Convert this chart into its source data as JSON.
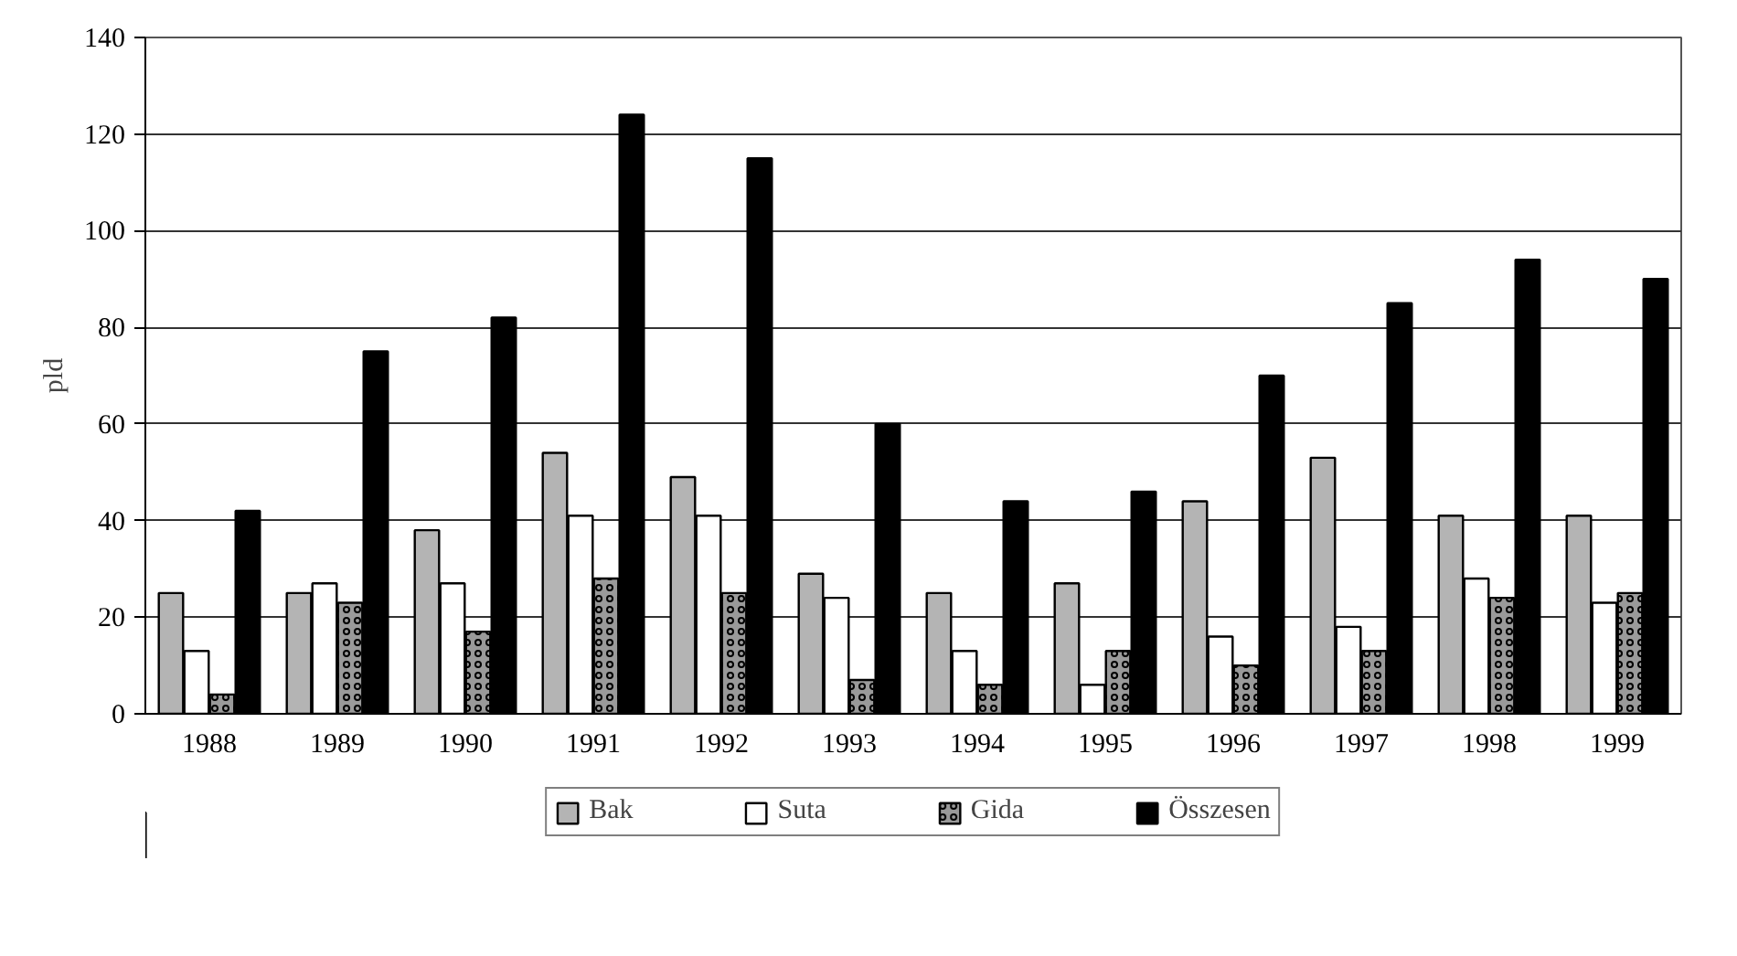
{
  "chart_data": {
    "type": "bar",
    "ylabel": "pld",
    "categories": [
      "1988",
      "1989",
      "1990",
      "1991",
      "1992",
      "1993",
      "1994",
      "1995",
      "1996",
      "1997",
      "1998",
      "1999"
    ],
    "series": [
      {
        "name": "Bak",
        "color": "#b4b4b4",
        "values": [
          25,
          25,
          38,
          54,
          49,
          29,
          25,
          27,
          44,
          53,
          41,
          41
        ]
      },
      {
        "name": "Suta",
        "color": "#ffffff",
        "values": [
          13,
          27,
          27,
          41,
          41,
          24,
          13,
          6,
          16,
          18,
          28,
          23
        ]
      },
      {
        "name": "Gida",
        "color": "#9a9a9a",
        "values": [
          4,
          23,
          17,
          28,
          25,
          7,
          6,
          13,
          10,
          13,
          24,
          25
        ]
      },
      {
        "name": "Összesen",
        "color": "#000000",
        "values": [
          42,
          75,
          82,
          124,
          115,
          60,
          44,
          46,
          70,
          85,
          94,
          90
        ]
      }
    ],
    "ylim": [
      0,
      140
    ],
    "yticks": [
      0,
      20,
      40,
      60,
      80,
      100,
      120,
      140
    ],
    "grid": "y",
    "legend": "bottom"
  }
}
